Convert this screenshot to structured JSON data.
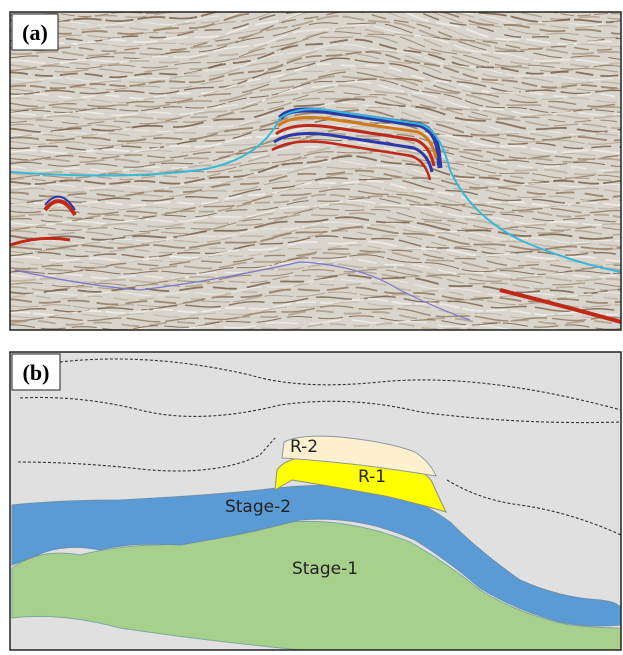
{
  "panel_a": {
    "label": "(a)"
  },
  "panel_b": {
    "label": "(b)",
    "units": {
      "r2": "R-2",
      "r1": "R-1",
      "stage2": "Stage-2",
      "stage1": "Stage-1"
    }
  }
}
